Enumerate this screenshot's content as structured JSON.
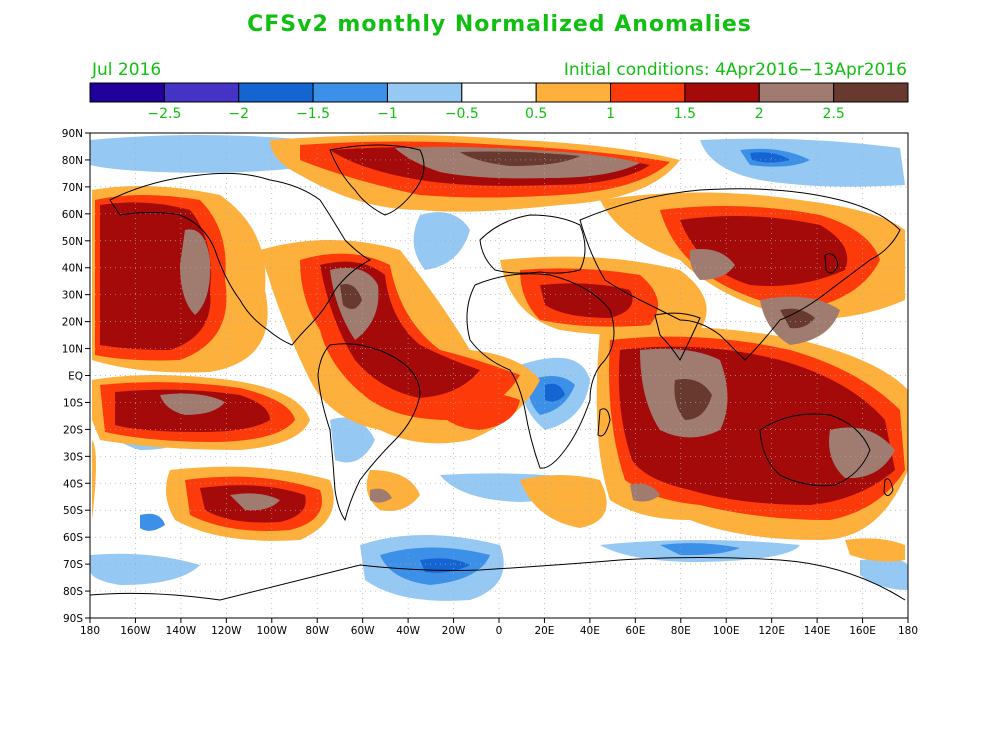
{
  "title": "CFSv2 monthly Normalized Anomalies",
  "period": "Jul 2016",
  "initial_conditions": "Initial conditions: 4Apr2016−13Apr2016",
  "colorbar": {
    "colors": [
      "#22009a",
      "#4533c6",
      "#1464d2",
      "#3c90e8",
      "#96c8f4",
      "#ffffff",
      "#fdb03c",
      "#fc3a0a",
      "#a50a0a",
      "#a07c70",
      "#68392e"
    ],
    "labels": [
      "−2.5",
      "−2",
      "−1.5",
      "−1",
      "−0.5",
      "0.5",
      "1",
      "1.5",
      "2",
      "2.5"
    ],
    "label_color": "#10c010"
  },
  "axes": {
    "lat_labels": [
      "90N",
      "80N",
      "70N",
      "60N",
      "50N",
      "40N",
      "30N",
      "20N",
      "10N",
      "EQ",
      "10S",
      "20S",
      "30S",
      "40S",
      "50S",
      "60S",
      "70S",
      "80S",
      "90S"
    ],
    "lon_labels": [
      "180",
      "160W",
      "140W",
      "120W",
      "100W",
      "80W",
      "60W",
      "40W",
      "20W",
      "0",
      "20E",
      "40E",
      "60E",
      "80E",
      "100E",
      "120E",
      "140E",
      "160E",
      "180"
    ]
  }
}
